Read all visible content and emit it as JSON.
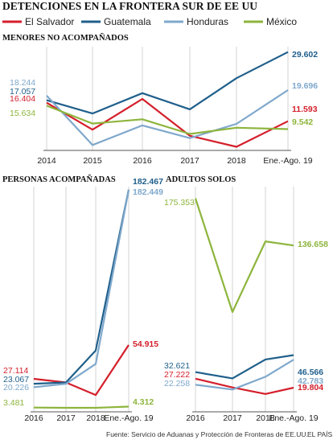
{
  "header": {
    "title": "DETENCIONES EN LA FRONTERA SUR DE EE UU"
  },
  "legend": [
    {
      "name": "El Salvador",
      "color": "#d41f2b"
    },
    {
      "name": "Guatemala",
      "color": "#1f5f8b"
    },
    {
      "name": "Honduras",
      "color": "#7fa8cc"
    },
    {
      "name": "México",
      "color": "#8db53c"
    }
  ],
  "footer": {
    "source": "Fuente: Servicio de Aduanas y Protección de Fronteras de EE.UU.",
    "credit": "EL PAÍS"
  },
  "chart_data": [
    {
      "type": "line",
      "title": "MENORES NO ACOMPAÑADOS",
      "categories": [
        "2014",
        "2015",
        "2016",
        "2017",
        "2018",
        "Ene.-Ago. 19"
      ],
      "ylim": [
        4000,
        31000
      ],
      "grid": true,
      "series": [
        {
          "name": "El Salvador",
          "values": [
            16404,
            9400,
            17400,
            7800,
            4950,
            11593
          ],
          "start_label": "16.404",
          "end_label": "11.593"
        },
        {
          "name": "Guatemala",
          "values": [
            17057,
            13600,
            18900,
            14700,
            22800,
            29602
          ],
          "start_label": "17.057",
          "end_label": "29.602"
        },
        {
          "name": "Honduras",
          "values": [
            18244,
            5400,
            10500,
            7200,
            10900,
            19696
          ],
          "start_label": "18.244",
          "end_label": "19.696"
        },
        {
          "name": "México",
          "values": [
            15634,
            11000,
            12100,
            8300,
            9900,
            9542
          ],
          "start_label": "15.634",
          "end_label": "9.542"
        }
      ]
    },
    {
      "type": "line",
      "title": "PERSONAS ACOMPAÑADAS",
      "categories": [
        "2016",
        "2017",
        "2018",
        "Ene.-Ago. 19"
      ],
      "ylim": [
        0,
        185000
      ],
      "grid": true,
      "series": [
        {
          "name": "El Salvador",
          "values": [
            27114,
            24100,
            13800,
            54915
          ],
          "start_label": "27.114",
          "end_label": "54.915"
        },
        {
          "name": "Guatemala",
          "values": [
            23067,
            24100,
            50400,
            182467
          ],
          "start_label": "23.067",
          "end_label": "182.467"
        },
        {
          "name": "Honduras",
          "values": [
            20226,
            23000,
            39400,
            182449
          ],
          "start_label": "20.226",
          "end_label": "182.449"
        },
        {
          "name": "México",
          "values": [
            3481,
            3300,
            3300,
            4312
          ],
          "start_label": "3.481",
          "end_label": "4.312"
        }
      ]
    },
    {
      "type": "line",
      "title": "ADULTOS SOLOS",
      "categories": [
        "2016",
        "2017",
        "2018",
        "Ene.-Ago. 19"
      ],
      "ylim": [
        0,
        185000
      ],
      "grid": true,
      "series": [
        {
          "name": "El Salvador",
          "values": [
            27222,
            20000,
            14700,
            19804
          ],
          "start_label": "27.222",
          "end_label": "19.804"
        },
        {
          "name": "Guatemala",
          "values": [
            32621,
            27500,
            43000,
            46566
          ],
          "start_label": "32.621",
          "end_label": "46.566"
        },
        {
          "name": "Honduras",
          "values": [
            22258,
            18300,
            28800,
            42783
          ],
          "start_label": "22.258",
          "end_label": "42.783"
        },
        {
          "name": "México",
          "values": [
            175353,
            82000,
            140000,
            136658
          ],
          "start_label": "175.353",
          "end_label": "136.658"
        }
      ]
    }
  ]
}
